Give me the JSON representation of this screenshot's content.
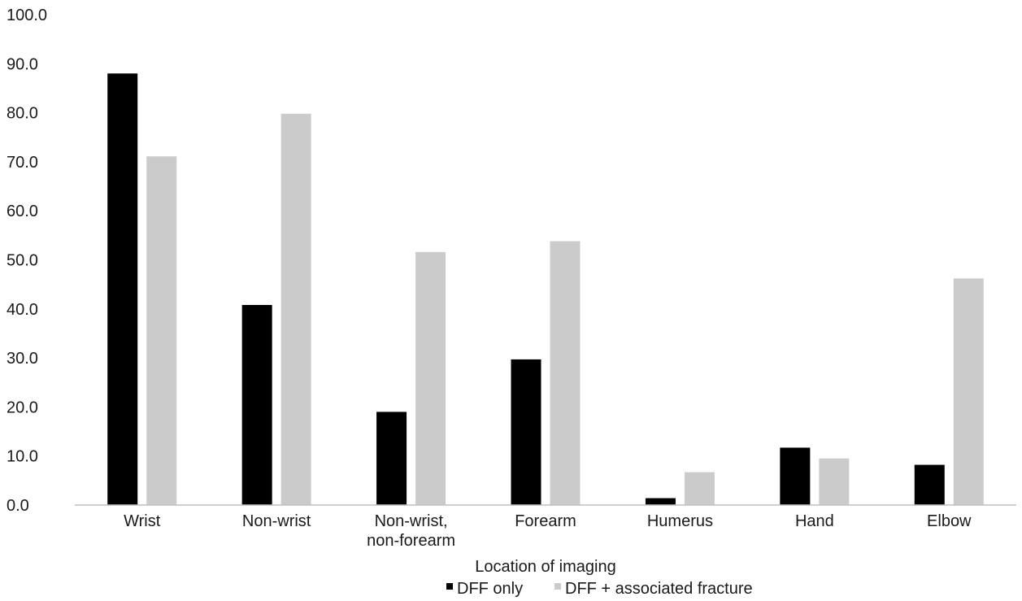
{
  "chart_data": {
    "type": "bar",
    "title": "",
    "xlabel": "Location of imaging",
    "ylabel": "",
    "ylim": [
      0,
      100
    ],
    "yticks": [
      "0.0",
      "10.0",
      "20.0",
      "30.0",
      "40.0",
      "50.0",
      "60.0",
      "70.0",
      "80.0",
      "90.0",
      "100.0"
    ],
    "categories": [
      [
        "Wrist"
      ],
      [
        "Non-wrist"
      ],
      [
        "Non-wrist,",
        "non-forearm"
      ],
      [
        "Forearm"
      ],
      [
        "Humerus"
      ],
      [
        "Hand"
      ],
      [
        "Elbow"
      ]
    ],
    "series": [
      {
        "name": "DFF only",
        "color": "#000000",
        "values": [
          88.0,
          40.8,
          19.0,
          29.7,
          1.4,
          11.7,
          8.2
        ]
      },
      {
        "name": "DFF + associated fracture",
        "color": "#cccbcc",
        "values": [
          71.1,
          79.8,
          51.6,
          53.8,
          6.7,
          9.5,
          46.2
        ]
      }
    ],
    "grid": false,
    "legend_position": "bottom"
  }
}
